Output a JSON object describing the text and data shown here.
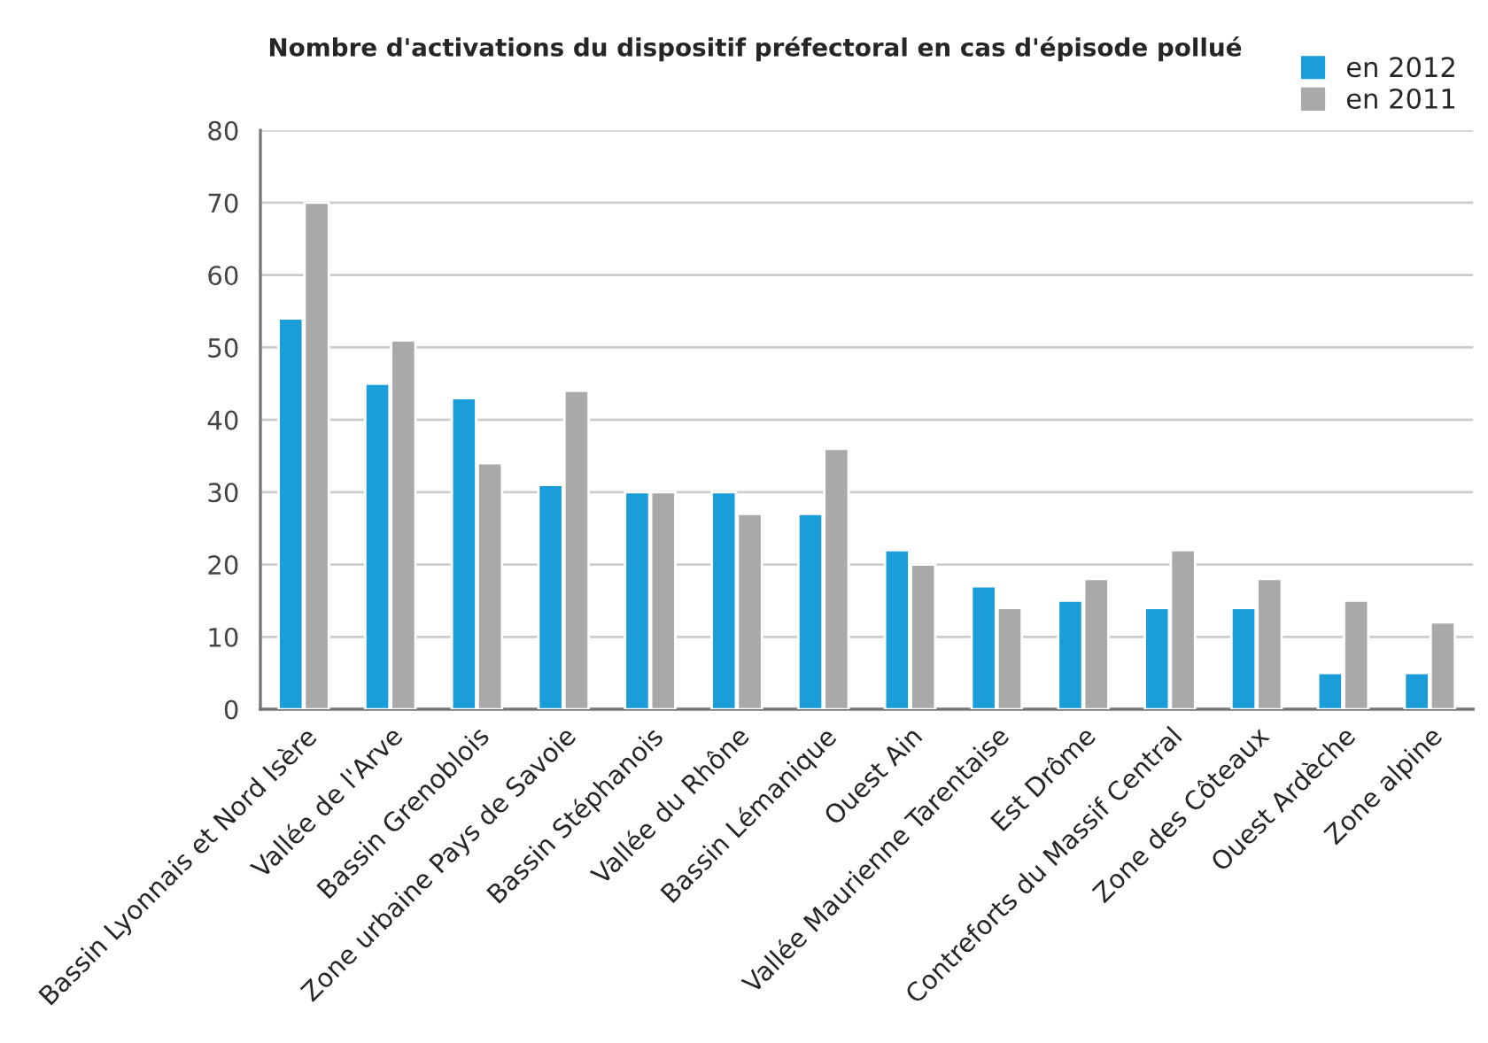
{
  "chart_data": {
    "type": "bar",
    "title": "Nombre d'activations du dispositif préfectoral en cas d'épisode pollué",
    "categories": [
      "Bassin Lyonnais et Nord Isère",
      "Vallée de l'Arve",
      "Bassin Grenoblois",
      "Zone urbaine Pays de Savoie",
      "Bassin Stéphanois",
      "Vallée du Rhône",
      "Bassin Lémanique",
      "Ouest Ain",
      "Vallée Maurienne Tarentaise",
      "Est Drôme",
      "Contreforts du Massif Central",
      "Zone des Côteaux",
      "Ouest Ardèche",
      "Zone alpine"
    ],
    "series": [
      {
        "name": "en 2012",
        "color": "#1a9dd9",
        "values": [
          54,
          45,
          43,
          31,
          30,
          30,
          27,
          22,
          17,
          15,
          14,
          14,
          5,
          5
        ]
      },
      {
        "name": "en 2011",
        "color": "#a9a9a9",
        "values": [
          70,
          51,
          34,
          44,
          30,
          27,
          36,
          20,
          14,
          18,
          22,
          18,
          15,
          12
        ]
      }
    ],
    "ylim": [
      0,
      80
    ],
    "yticks": [
      0,
      10,
      20,
      30,
      40,
      50,
      60,
      70,
      80
    ],
    "grid": "y",
    "legend": "top right"
  }
}
